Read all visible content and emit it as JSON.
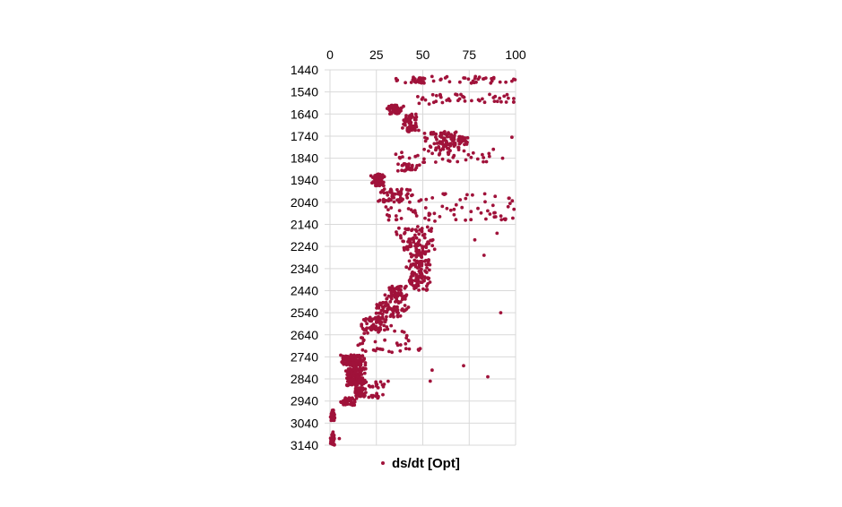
{
  "chart_data": {
    "type": "scatter",
    "title": "",
    "xlabel": "",
    "ylabel": "",
    "x_axis_position": "top",
    "y_axis_inverted": true,
    "xlim": [
      0,
      100
    ],
    "ylim": [
      1440,
      3140
    ],
    "x_ticks": [
      "0",
      "25",
      "50",
      "75",
      "100"
    ],
    "y_ticks": [
      "1440",
      "1540",
      "1640",
      "1740",
      "1840",
      "1940",
      "2040",
      "2140",
      "2240",
      "2340",
      "2440",
      "2540",
      "2640",
      "2740",
      "2840",
      "2940",
      "3040",
      "3140"
    ],
    "grid": true,
    "legend_position": "bottom",
    "series": [
      {
        "name": "ds/dt [Opt]",
        "color": "#A0123A",
        "note": "Dense scatter of value (x) vs depth (y). Points described as clusters [depth_min, depth_max, value_min, value_max, count] plus isolated outliers [value, depth].",
        "clusters": [
          [
            1470,
            1500,
            35,
            100,
            40
          ],
          [
            1470,
            1500,
            44,
            52,
            25
          ],
          [
            1550,
            1595,
            45,
            100,
            45
          ],
          [
            1600,
            1640,
            30,
            40,
            40
          ],
          [
            1640,
            1720,
            38,
            48,
            60
          ],
          [
            1720,
            1810,
            50,
            75,
            90
          ],
          [
            1740,
            1780,
            62,
            78,
            20
          ],
          [
            1810,
            1860,
            35,
            90,
            35
          ],
          [
            1865,
            1900,
            35,
            50,
            30
          ],
          [
            1910,
            1965,
            22,
            30,
            80
          ],
          [
            1980,
            2040,
            25,
            45,
            55
          ],
          [
            2000,
            2040,
            40,
            100,
            20
          ],
          [
            2050,
            2130,
            30,
            100,
            55
          ],
          [
            2150,
            2260,
            35,
            58,
            80
          ],
          [
            2260,
            2380,
            40,
            55,
            90
          ],
          [
            2380,
            2440,
            38,
            55,
            45
          ],
          [
            2420,
            2480,
            28,
            42,
            55
          ],
          [
            2490,
            2560,
            20,
            45,
            70
          ],
          [
            2560,
            2620,
            15,
            35,
            70
          ],
          [
            2620,
            2720,
            15,
            50,
            40
          ],
          [
            2730,
            2780,
            5,
            20,
            110
          ],
          [
            2790,
            2870,
            8,
            20,
            140
          ],
          [
            2850,
            2880,
            17,
            35,
            15
          ],
          [
            2880,
            2920,
            12,
            20,
            50
          ],
          [
            2905,
            2930,
            20,
            30,
            12
          ],
          [
            2925,
            2960,
            5,
            15,
            40
          ],
          [
            2980,
            3030,
            0,
            3,
            30
          ],
          [
            3080,
            3140,
            0,
            3,
            30
          ]
        ],
        "outliers": [
          [
            99,
            1482
          ],
          [
            99,
            1570
          ],
          [
            98,
            1745
          ],
          [
            97,
            2045
          ],
          [
            96,
            2060
          ],
          [
            92,
            2540
          ],
          [
            85,
            2830
          ],
          [
            72,
            2780
          ],
          [
            54,
            2850
          ],
          [
            55,
            2800
          ],
          [
            78,
            2210
          ],
          [
            83,
            2280
          ],
          [
            5,
            3110
          ],
          [
            93,
            1840
          ],
          [
            88,
            1800
          ],
          [
            90,
            2180
          ]
        ]
      }
    ]
  }
}
